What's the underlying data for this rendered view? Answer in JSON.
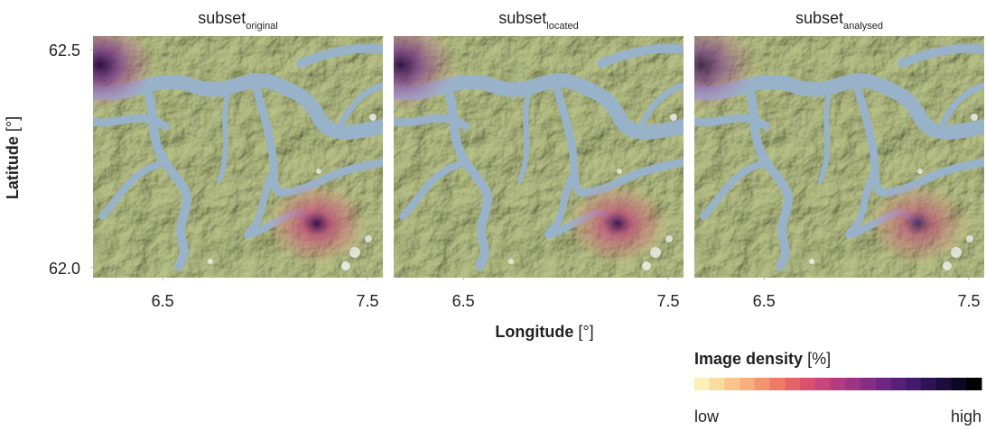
{
  "chart_data": [
    {
      "type": "map",
      "title": "subset",
      "subscript": "original",
      "xlim": [
        6.16,
        7.575
      ],
      "ylim": [
        61.977,
        62.531
      ],
      "xticks": [
        6.5,
        7.5
      ],
      "yticks": [
        {
          "value": 62,
          "label": "62.0"
        },
        62.5
      ],
      "ylabel": "Latitude",
      "ylabel_unit": "[°]"
    },
    {
      "type": "map",
      "title": "subset",
      "subscript": "located",
      "xlim": [
        6.16,
        7.575
      ],
      "ylim": [
        61.977,
        62.531
      ],
      "xticks": [
        6.5,
        7.5
      ],
      "xlabel": "Longitude",
      "xlabel_unit": "[°]"
    },
    {
      "type": "map",
      "title": "subset",
      "subscript": "analysed",
      "xlim": [
        6.16,
        7.575
      ],
      "ylim": [
        61.977,
        62.531
      ],
      "xticks": [
        6.5,
        7.5
      ]
    }
  ],
  "colorbar": {
    "title": "Image density",
    "unit": "[%]",
    "low": "low",
    "high": "high",
    "colors": [
      "#fbf0b8",
      "#fbdca0",
      "#f9c58c",
      "#f7ad7c",
      "#f4946f",
      "#ef7b67",
      "#e66468",
      "#d95170",
      "#c7457a",
      "#b33c80",
      "#9c3483",
      "#852d83",
      "#6e2780",
      "#581f78",
      "#42196b",
      "#2e1357",
      "#1c0d3c",
      "#0d0821",
      "#000004"
    ]
  }
}
